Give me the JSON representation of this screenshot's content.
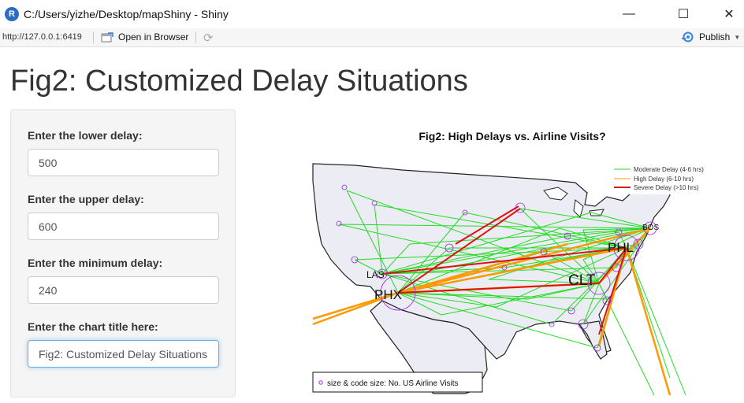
{
  "window": {
    "title": "C:/Users/yizhe/Desktop/mapShiny - Shiny",
    "app_icon_letter": "R",
    "minimize": "—",
    "maximize": "☐",
    "close": "✕"
  },
  "toolbar": {
    "url": "http://127.0.0.1:6419",
    "open_in_browser": "Open in Browser",
    "publish": "Publish"
  },
  "page": {
    "title": "Fig2: Customized Delay Situations"
  },
  "inputs": [
    {
      "label": "Enter the lower delay:",
      "value": "500"
    },
    {
      "label": "Enter the upper delay:",
      "value": "600"
    },
    {
      "label": "Enter the minimum delay:",
      "value": "240"
    },
    {
      "label": "Enter the chart title here:",
      "value": "Fig2: Customized Delay Situations"
    }
  ],
  "plot": {
    "title": "Fig2: High Delays vs. Airline Visits?",
    "legend": [
      {
        "label": "Moderate Delay (4-6 hrs)",
        "color": "#22dd22"
      },
      {
        "label": "High Delay (6-10 hrs)",
        "color": "#ff9900"
      },
      {
        "label": "Severe Delay (>10 hrs)",
        "color": "#dd1111"
      }
    ],
    "size_note": "size & code size: No. US Airline Visits",
    "airports": [
      {
        "code": "PHX",
        "big": true
      },
      {
        "code": "LAS",
        "big": false
      },
      {
        "code": "CLT",
        "big": true
      },
      {
        "code": "PHL",
        "big": true
      },
      {
        "code": "BOS",
        "big": false
      }
    ]
  },
  "colors": {
    "moderate": "#22dd22",
    "high": "#ff9900",
    "severe": "#dd1111",
    "airport_circle": "#a020f0",
    "land": "#ececf5"
  }
}
